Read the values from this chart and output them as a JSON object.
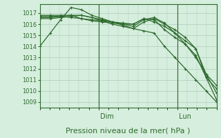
{
  "bg_color": "#d6eedd",
  "grid_color": "#aaccbb",
  "line_color": "#2d6a2d",
  "ylabel_ticks": [
    1009,
    1010,
    1011,
    1012,
    1013,
    1014,
    1015,
    1016,
    1017
  ],
  "ylim": [
    1008.5,
    1017.8
  ],
  "xlabel": "Pression niveau de la mer( hPa )",
  "xlabel_fontsize": 8,
  "tick_fontsize": 6,
  "vline_positions": [
    0.333,
    0.778
  ],
  "vline_labels": [
    "Dim",
    "Lun"
  ],
  "series": [
    [
      1014.0,
      1015.2,
      1016.4,
      1017.5,
      1017.3,
      1016.8,
      1016.5,
      1016.2,
      1015.9,
      1015.6,
      1015.4,
      1015.2,
      1014.0,
      1013.0,
      1012.0,
      1011.0,
      1010.0,
      1009.0
    ],
    [
      1016.5,
      1016.5,
      1016.6,
      1016.7,
      1016.8,
      1016.6,
      1016.3,
      1016.0,
      1015.8,
      1015.6,
      1016.2,
      1016.5,
      1016.0,
      1015.5,
      1014.8,
      1013.8,
      1011.2,
      1009.2
    ],
    [
      1016.6,
      1016.6,
      1016.7,
      1016.8,
      1016.8,
      1016.6,
      1016.4,
      1016.2,
      1016.0,
      1015.8,
      1016.4,
      1016.6,
      1016.1,
      1015.2,
      1014.2,
      1013.0,
      1011.5,
      1009.8
    ],
    [
      1016.7,
      1016.7,
      1016.7,
      1016.6,
      1016.5,
      1016.4,
      1016.3,
      1016.2,
      1016.1,
      1016.0,
      1016.5,
      1016.4,
      1015.5,
      1014.8,
      1014.2,
      1013.2,
      1011.2,
      1010.2
    ],
    [
      1016.8,
      1016.8,
      1016.8,
      1016.8,
      1016.5,
      1016.3,
      1016.2,
      1016.1,
      1016.0,
      1016.0,
      1016.5,
      1016.2,
      1015.8,
      1015.2,
      1014.5,
      1013.8,
      1011.5,
      1010.5
    ]
  ]
}
